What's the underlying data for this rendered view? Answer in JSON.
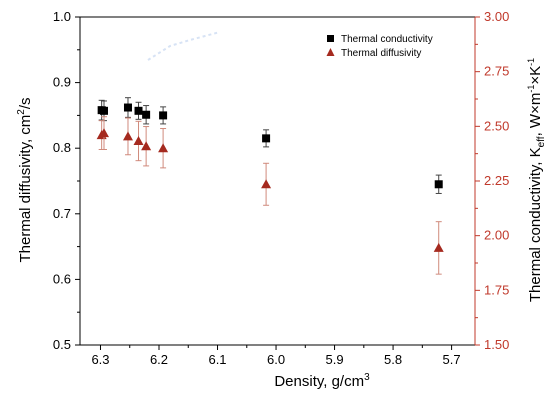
{
  "chart_data": {
    "type": "scatter",
    "x_axis": {
      "label": "Density, g/cm",
      "label_superscript": "3",
      "range": [
        6.335,
        5.66
      ],
      "reversed": true,
      "ticks": [
        "6.3",
        "6.2",
        "6.1",
        "6.0",
        "5.9",
        "5.8",
        "5.7"
      ],
      "tick_values": [
        6.3,
        6.2,
        6.1,
        6.0,
        5.9,
        5.8,
        5.7
      ]
    },
    "y_axis_left": {
      "label": "Thermal diffusivity, cm",
      "label_superscript": "2",
      "label_suffix": "/s",
      "range": [
        0.5,
        1.0
      ],
      "ticks": [
        "0.5",
        "0.6",
        "0.7",
        "0.8",
        "0.9",
        "1.0"
      ],
      "tick_values": [
        0.5,
        0.6,
        0.7,
        0.8,
        0.9,
        1.0
      ]
    },
    "y_axis_right": {
      "label": "Thermal conductivity, K",
      "label_subscript": "eff",
      "label_units": ", W×m",
      "label_units_sup1": "-1",
      "label_units_mid": "×K",
      "label_units_sup2": "-1",
      "range": [
        1.5,
        3.0
      ],
      "ticks": [
        "1.50",
        "1.75",
        "2.00",
        "2.25",
        "2.50",
        "2.75",
        "3.00"
      ],
      "tick_values": [
        1.5,
        1.75,
        2.0,
        2.25,
        2.5,
        2.75,
        3.0
      ],
      "color": "#c0392b"
    },
    "legend": {
      "position": "top-right",
      "entries": [
        "Thermal conductivity",
        "Thermal diffusivity"
      ]
    },
    "series": [
      {
        "name": "Thermal conductivity",
        "axis": "left",
        "marker": "square",
        "color": "#000000",
        "points": [
          {
            "x": 6.298,
            "y": 0.858,
            "err": 0.015
          },
          {
            "x": 6.294,
            "y": 0.857,
            "err": 0.015
          },
          {
            "x": 6.253,
            "y": 0.862,
            "err": 0.015
          },
          {
            "x": 6.235,
            "y": 0.857,
            "err": 0.013
          },
          {
            "x": 6.222,
            "y": 0.851,
            "err": 0.014
          },
          {
            "x": 6.193,
            "y": 0.85,
            "err": 0.013
          },
          {
            "x": 6.017,
            "y": 0.815,
            "err": 0.013
          },
          {
            "x": 5.722,
            "y": 0.745,
            "err": 0.014
          }
        ]
      },
      {
        "name": "Thermal diffusivity",
        "axis": "left",
        "marker": "triangle",
        "color": "#a52a1f",
        "points": [
          {
            "x": 6.298,
            "y": 0.82,
            "err": 0.022
          },
          {
            "x": 6.294,
            "y": 0.823,
            "err": 0.025
          },
          {
            "x": 6.253,
            "y": 0.818,
            "err": 0.028
          },
          {
            "x": 6.235,
            "y": 0.811,
            "err": 0.03
          },
          {
            "x": 6.222,
            "y": 0.803,
            "err": 0.03
          },
          {
            "x": 6.193,
            "y": 0.8,
            "err": 0.03
          },
          {
            "x": 6.017,
            "y": 0.745,
            "err": 0.032
          },
          {
            "x": 5.722,
            "y": 0.648,
            "err": 0.04
          }
        ]
      }
    ]
  }
}
